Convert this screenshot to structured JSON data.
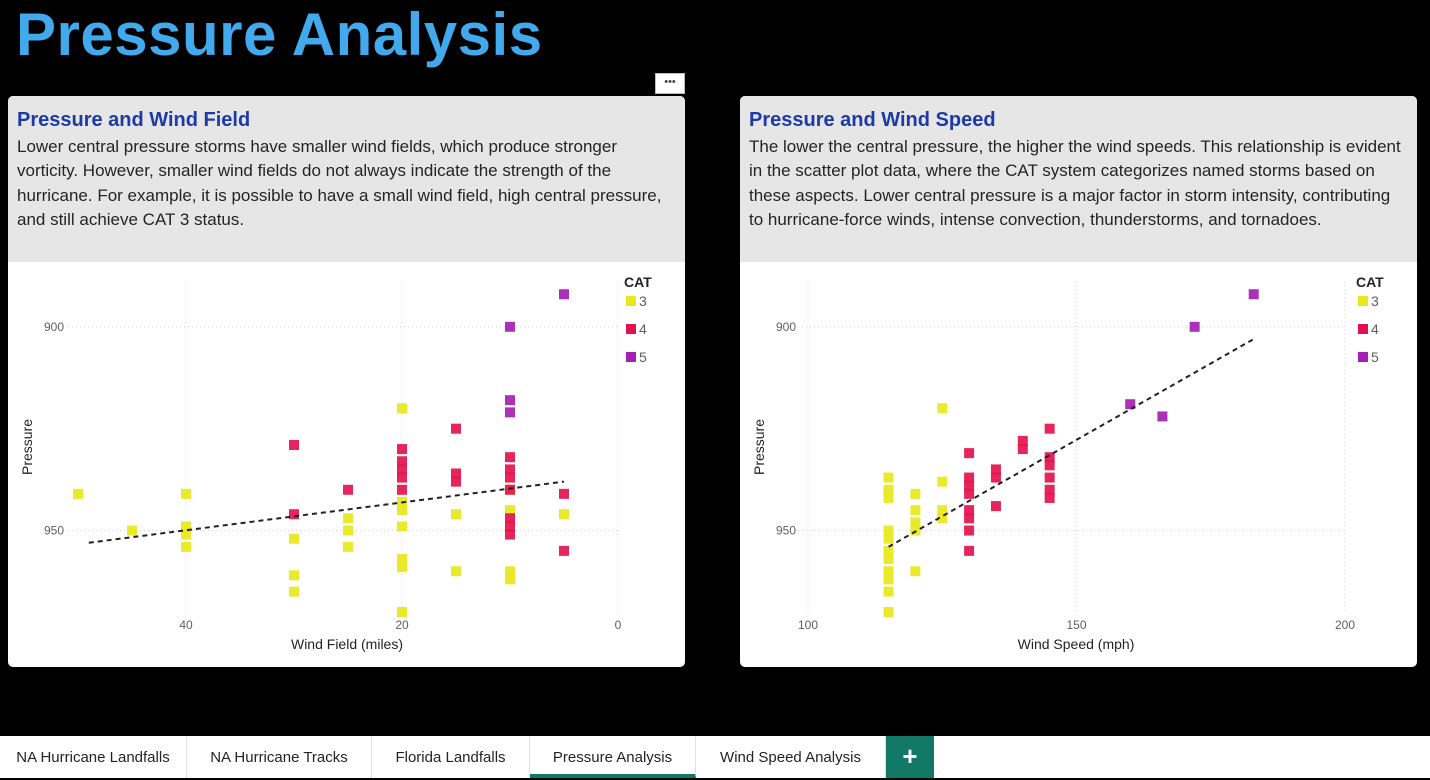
{
  "page": {
    "title": "Pressure Analysis",
    "more_label": "•••"
  },
  "cards": [
    {
      "title": "Pressure and Wind Field",
      "body": "Lower central pressure storms have smaller wind fields, which produce stronger vorticity. However, smaller wind fields do not always indicate the strength of the hurricane. For example, it is possible to have a small wind field, high central pressure, and still achieve CAT 3 status."
    },
    {
      "title": "Pressure and Wind Speed",
      "body": "The lower the central pressure, the higher the wind speeds. This relationship is evident in the scatter plot data, where the CAT system categorizes named storms based on these aspects. Lower central pressure is a major factor in storm intensity, contributing to hurricane-force winds, intense convection, thunderstorms, and tornadoes."
    }
  ],
  "legend": {
    "title": "CAT",
    "items": [
      {
        "label": "3",
        "color": "#e8e81a"
      },
      {
        "label": "4",
        "color": "#e3124e"
      },
      {
        "label": "5",
        "color": "#a51fb3"
      }
    ]
  },
  "chart_data": [
    {
      "type": "scatter",
      "xlabel": "Wind Field (miles)",
      "ylabel": "Pressure",
      "x_reversed": true,
      "xlim": [
        50,
        0
      ],
      "ylim": [
        970,
        889
      ],
      "y_inverted": true,
      "xticks": [
        "40",
        "20",
        "0"
      ],
      "xtick_values": [
        40,
        20,
        0
      ],
      "yticks": [
        "900",
        "950"
      ],
      "ytick_values": [
        900,
        950
      ],
      "trend": [
        [
          49,
          953
        ],
        [
          5,
          938
        ]
      ],
      "series": [
        {
          "name": "3",
          "points": [
            [
              50,
              941
            ],
            [
              45,
              950
            ],
            [
              40,
              941
            ],
            [
              40,
              949
            ],
            [
              40,
              951
            ],
            [
              40,
              954
            ],
            [
              30,
              952
            ],
            [
              30,
              961
            ],
            [
              30,
              965
            ],
            [
              25,
              947
            ],
            [
              25,
              950
            ],
            [
              25,
              954
            ],
            [
              20,
              920
            ],
            [
              20,
              943
            ],
            [
              20,
              945
            ],
            [
              20,
              949
            ],
            [
              20,
              957
            ],
            [
              20,
              959
            ],
            [
              20,
              970
            ],
            [
              15,
              946
            ],
            [
              15,
              960
            ],
            [
              10,
              940
            ],
            [
              10,
              945
            ],
            [
              10,
              960
            ],
            [
              10,
              962
            ],
            [
              5,
              946
            ]
          ]
        },
        {
          "name": "4",
          "points": [
            [
              30,
              929
            ],
            [
              30,
              946
            ],
            [
              25,
              940
            ],
            [
              20,
              930
            ],
            [
              20,
              933
            ],
            [
              20,
              935
            ],
            [
              20,
              937
            ],
            [
              20,
              940
            ],
            [
              15,
              925
            ],
            [
              15,
              936
            ],
            [
              15,
              938
            ],
            [
              10,
              932
            ],
            [
              10,
              935
            ],
            [
              10,
              937
            ],
            [
              10,
              940
            ],
            [
              10,
              947
            ],
            [
              10,
              949
            ],
            [
              10,
              951
            ],
            [
              5,
              941
            ],
            [
              5,
              955
            ]
          ]
        },
        {
          "name": "5",
          "points": [
            [
              5,
              892
            ],
            [
              10,
              900
            ],
            [
              10,
              918
            ],
            [
              10,
              921
            ]
          ]
        }
      ]
    },
    {
      "type": "scatter",
      "xlabel": "Wind Speed (mph)",
      "ylabel": "Pressure",
      "xlim": [
        100,
        200
      ],
      "ylim": [
        970,
        889
      ],
      "y_inverted": true,
      "xticks": [
        "100",
        "150",
        "200"
      ],
      "xtick_values": [
        100,
        150,
        200
      ],
      "yticks": [
        "900",
        "950"
      ],
      "ytick_values": [
        900,
        950
      ],
      "trend": [
        [
          115,
          954
        ],
        [
          183,
          903
        ]
      ],
      "series": [
        {
          "name": "3",
          "points": [
            [
              115,
              937
            ],
            [
              115,
              940
            ],
            [
              115,
              942
            ],
            [
              115,
              950
            ],
            [
              115,
              952
            ],
            [
              115,
              955
            ],
            [
              115,
              957
            ],
            [
              115,
              960
            ],
            [
              115,
              962
            ],
            [
              115,
              965
            ],
            [
              115,
              970
            ],
            [
              120,
              941
            ],
            [
              120,
              945
            ],
            [
              120,
              948
            ],
            [
              120,
              950
            ],
            [
              120,
              960
            ],
            [
              125,
              920
            ],
            [
              125,
              938
            ],
            [
              125,
              945
            ],
            [
              125,
              947
            ]
          ]
        },
        {
          "name": "4",
          "points": [
            [
              130,
              931
            ],
            [
              130,
              937
            ],
            [
              130,
              939
            ],
            [
              130,
              941
            ],
            [
              130,
              945
            ],
            [
              130,
              947
            ],
            [
              130,
              950
            ],
            [
              130,
              955
            ],
            [
              135,
              935
            ],
            [
              135,
              937
            ],
            [
              135,
              944
            ],
            [
              140,
              928
            ],
            [
              140,
              930
            ],
            [
              145,
              925
            ],
            [
              145,
              932
            ],
            [
              145,
              934
            ],
            [
              145,
              937
            ],
            [
              145,
              940
            ],
            [
              145,
              942
            ]
          ]
        },
        {
          "name": "5",
          "points": [
            [
              160,
              919
            ],
            [
              166,
              922
            ],
            [
              172,
              900
            ],
            [
              183,
              892
            ]
          ]
        }
      ]
    }
  ],
  "tabs": [
    {
      "label": "NA Hurricane Landfalls"
    },
    {
      "label": "NA Hurricane Tracks"
    },
    {
      "label": "Florida Landfalls"
    },
    {
      "label": "Pressure Analysis",
      "active": true
    },
    {
      "label": "Wind Speed Analysis"
    }
  ],
  "add_tab_label": "+"
}
